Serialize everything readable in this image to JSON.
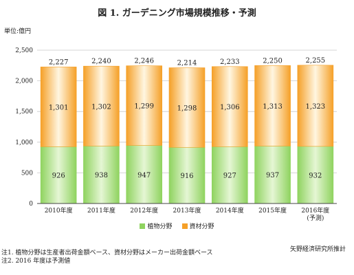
{
  "title": "図 1. ガーデニング市場規模推移・予測",
  "unit_label": "単位:億円",
  "source": "矢野経済研究所推計",
  "notes": [
    "注1. 植物分野は生産者出荷金額ベース、資材分野はメーカー出荷金額ベース",
    "注2. 2016 年度は予測値"
  ],
  "colors": {
    "plants_fill": "#8fd35f",
    "plants_light": "#e5f6d4",
    "materials_fill": "#f5a028",
    "materials_light": "#fff6e1",
    "grid": "#c8c8c8",
    "axis": "#444444"
  },
  "chart_data": {
    "type": "bar",
    "stacked": true,
    "categories": [
      "2010年度",
      "2011年度",
      "2012年度",
      "2013年度",
      "2014年度",
      "2015年度",
      "2016年度"
    ],
    "category_sublabels": [
      "",
      "",
      "",
      "",
      "",
      "",
      "(予測)"
    ],
    "series": [
      {
        "name": "植物分野",
        "values": [
          926,
          938,
          947,
          916,
          927,
          937,
          932
        ]
      },
      {
        "name": "資材分野",
        "values": [
          1301,
          1302,
          1299,
          1298,
          1306,
          1313,
          1323
        ]
      }
    ],
    "totals": [
      2227,
      2240,
      2246,
      2214,
      2233,
      2250,
      2255
    ],
    "y_ticks": [
      "0",
      "500",
      "1,000",
      "1,500",
      "2,000",
      "2,500"
    ],
    "ylim": [
      0,
      2500
    ],
    "grid": true,
    "legend_position": "bottom"
  }
}
